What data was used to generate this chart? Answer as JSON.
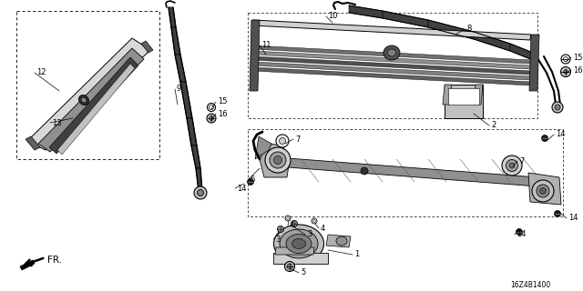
{
  "background_color": "#ffffff",
  "diagram_code": "16Z4B1400",
  "fig_width": 6.4,
  "fig_height": 3.2,
  "dpi": 100,
  "line_color": "#000000",
  "gray_dark": "#404040",
  "gray_mid": "#808080",
  "gray_light": "#c0c0c0",
  "gray_lighter": "#e0e0e0"
}
